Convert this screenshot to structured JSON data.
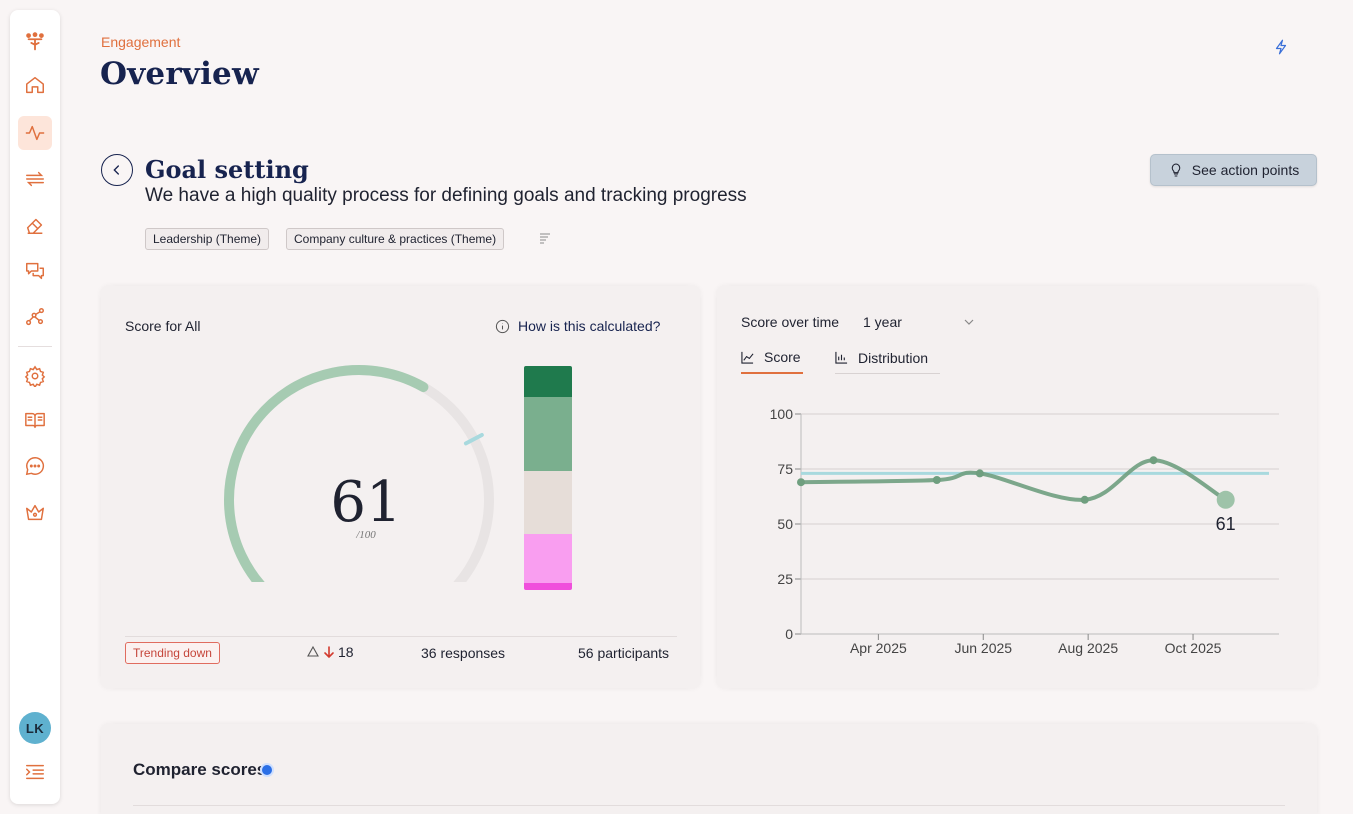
{
  "sidebar": {
    "items": [
      {
        "icon": "logo-icon"
      },
      {
        "icon": "home-icon"
      },
      {
        "icon": "activity-icon",
        "active": true
      },
      {
        "icon": "transfer-icon"
      },
      {
        "icon": "eraser-icon"
      },
      {
        "icon": "chat-icon"
      },
      {
        "icon": "network-icon"
      },
      {
        "icon": "gear-icon"
      },
      {
        "icon": "book-icon"
      },
      {
        "icon": "message-icon"
      },
      {
        "icon": "crown-icon"
      }
    ],
    "avatar": "LK",
    "collapse_icon": "indent-icon"
  },
  "header": {
    "breadcrumb": "Engagement",
    "title": "Overview"
  },
  "goal": {
    "title": "Goal setting",
    "description": "We have a high quality process for defining goals and tracking progress",
    "tags": [
      "Leadership (Theme)",
      "Company culture & practices (Theme)"
    ],
    "action_button": "See action points"
  },
  "score_card": {
    "title": "Score for All",
    "how_calculated": "How is this calculated?",
    "score": "61",
    "denominator": "/100",
    "score_value": 61,
    "benchmark": 73,
    "distribution": [
      {
        "share": 0.14,
        "color": "#1f7a4d"
      },
      {
        "share": 0.33,
        "color": "#7aaf8e"
      },
      {
        "share": 0.28,
        "color": "#e6ddd8"
      },
      {
        "share": 0.22,
        "color": "#f99ef0"
      },
      {
        "share": 0.03,
        "color": "#f04fdc"
      }
    ],
    "trend_badge": "Trending down",
    "delta": "18",
    "responses": "36 responses",
    "participants": "56 participants"
  },
  "time_card": {
    "title": "Score over time",
    "range": "1 year",
    "tabs": [
      {
        "label": "Score",
        "active": true
      },
      {
        "label": "Distribution",
        "active": false
      }
    ]
  },
  "chart_data": {
    "type": "line",
    "x_ticks": [
      "Apr 2025",
      "Jun 2025",
      "Aug 2025",
      "Oct 2025"
    ],
    "y_ticks": [
      "0",
      "25",
      "50",
      "75",
      "100"
    ],
    "ylim": [
      0,
      100
    ],
    "xlim": [
      "2025-02-15",
      "2025-11-20"
    ],
    "x_tick_dates": [
      "2025-04-01",
      "2025-06-01",
      "2025-08-01",
      "2025-10-01"
    ],
    "series": [
      {
        "points": [
          {
            "x": "2025-02-15",
            "y": 69
          },
          {
            "x": "2025-05-05",
            "y": 70
          },
          {
            "x": "2025-05-30",
            "y": 73
          },
          {
            "x": "2025-07-30",
            "y": 61
          },
          {
            "x": "2025-09-08",
            "y": 79
          },
          {
            "x": "2025-10-20",
            "y": 61
          }
        ],
        "color": "#6f9f7f"
      }
    ],
    "benchmark": {
      "y": 73,
      "color": "#a8d9de"
    },
    "last_label": "61",
    "grid": true
  },
  "compare": {
    "title": "Compare scores"
  }
}
